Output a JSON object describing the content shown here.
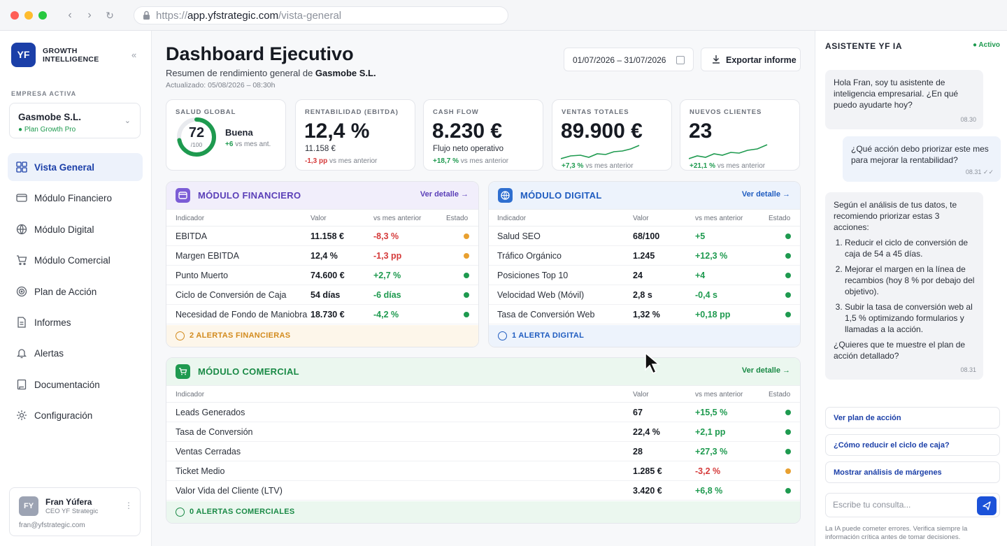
{
  "browser": {
    "url_prefix": "https://",
    "url_domain": "app.yfstrategic.com",
    "url_path": "/vista-general"
  },
  "sidebar": {
    "logo": "YF",
    "brand_line1": "GROWTH",
    "brand_line2": "INTELLIGENCE",
    "company_label": "EMPRESA ACTIVA",
    "company_name": "Gasmobe S.L.",
    "company_plan": "● Plan Growth Pro",
    "items": [
      {
        "label": "Vista General",
        "icon": "grid-icon",
        "active": true
      },
      {
        "label": "Módulo Financiero",
        "icon": "wallet-icon"
      },
      {
        "label": "Módulo Digital",
        "icon": "globe-icon"
      },
      {
        "label": "Módulo Comercial",
        "icon": "cart-icon"
      },
      {
        "label": "Plan de Acción",
        "icon": "target-icon"
      },
      {
        "label": "Informes",
        "icon": "document-icon"
      },
      {
        "label": "Alertas",
        "icon": "bell-icon"
      },
      {
        "label": "Documentación",
        "icon": "book-icon"
      },
      {
        "label": "Configuración",
        "icon": "gear-icon"
      }
    ],
    "user": {
      "initials": "FY",
      "name": "Fran Yúfera",
      "role": "CEO YF Strategic",
      "email": "fran@yfstrategic.com"
    }
  },
  "header": {
    "title": "Dashboard Ejecutivo",
    "subtitle_prefix": "Resumen de rendimiento general de ",
    "subtitle_company": "Gasmobe S.L.",
    "updated": "Actualizado: 05/08/2026 – 08:30h",
    "date_range": "01/07/2026 – 31/07/2026",
    "export_label": "Exportar informe"
  },
  "kpis": {
    "health": {
      "title": "SALUD GLOBAL",
      "value": "72",
      "denom": "/100",
      "score": 0.72,
      "status": "Buena",
      "delta": "+6",
      "delta_text": "vs mes ant."
    },
    "ebitda": {
      "title": "RENTABILIDAD (EBITDA)",
      "value": "12,4 %",
      "sub": "11.158 €",
      "delta": "-1,3 pp",
      "delta_text": "vs mes anterior"
    },
    "cash": {
      "title": "CASH FLOW",
      "value": "8.230 €",
      "sub": "Flujo neto operativo",
      "delta": "+18,7 %",
      "delta_text": "vs mes anterior"
    },
    "sales": {
      "title": "VENTAS TOTALES",
      "value": "89.900 €",
      "delta": "+7,3 %",
      "delta_text": "vs mes anterior"
    },
    "clients": {
      "title": "NUEVOS CLIENTES",
      "value": "23",
      "delta": "+21,1 %",
      "delta_text": "vs mes anterior"
    }
  },
  "columns": {
    "indicator": "Indicador",
    "value": "Valor",
    "vs": "vs mes anterior",
    "status": "Estado"
  },
  "fin": {
    "title": "MÓDULO FINANCIERO",
    "detail": "Ver detalle →",
    "alert": "2 ALERTAS FINANCIERAS",
    "rows": [
      {
        "ind": "EBITDA",
        "val": "11.158 €",
        "vs": "-8,3 %",
        "dir": "neg",
        "status": "warn"
      },
      {
        "ind": "Margen EBITDA",
        "val": "12,4 %",
        "vs": "-1,3 pp",
        "dir": "neg",
        "status": "warn"
      },
      {
        "ind": "Punto Muerto",
        "val": "74.600 €",
        "vs": "+2,7 %",
        "dir": "pos",
        "status": "ok"
      },
      {
        "ind": "Ciclo de Conversión de Caja",
        "val": "54 días",
        "vs": "-6 días",
        "dir": "pos",
        "status": "ok"
      },
      {
        "ind": "Necesidad de Fondo de Maniobra",
        "val": "18.730 €",
        "vs": "-4,2 %",
        "dir": "pos",
        "status": "ok"
      }
    ]
  },
  "dig": {
    "title": "MÓDULO DIGITAL",
    "detail": "Ver detalle →",
    "alert": "1 ALERTA DIGITAL",
    "rows": [
      {
        "ind": "Salud SEO",
        "val": "68/100",
        "vs": "+5",
        "dir": "pos",
        "status": "ok"
      },
      {
        "ind": "Tráfico Orgánico",
        "val": "1.245",
        "vs": "+12,3 %",
        "dir": "pos",
        "status": "ok"
      },
      {
        "ind": "Posiciones Top 10",
        "val": "24",
        "vs": "+4",
        "dir": "pos",
        "status": "ok"
      },
      {
        "ind": "Velocidad Web (Móvil)",
        "val": "2,8 s",
        "vs": "-0,4 s",
        "dir": "pos",
        "status": "ok"
      },
      {
        "ind": "Tasa de Conversión Web",
        "val": "1,32 %",
        "vs": "+0,18 pp",
        "dir": "pos",
        "status": "ok"
      }
    ]
  },
  "com": {
    "title": "MÓDULO COMERCIAL",
    "detail": "Ver detalle →",
    "alert": "0 ALERTAS COMERCIALES",
    "rows": [
      {
        "ind": "Leads Generados",
        "val": "67",
        "vs": "+15,5 %",
        "dir": "pos",
        "status": "ok"
      },
      {
        "ind": "Tasa de Conversión",
        "val": "22,4 %",
        "vs": "+2,1 pp",
        "dir": "pos",
        "status": "ok"
      },
      {
        "ind": "Ventas Cerradas",
        "val": "28",
        "vs": "+27,3 %",
        "dir": "pos",
        "status": "ok"
      },
      {
        "ind": "Ticket Medio",
        "val": "1.285 €",
        "vs": "-3,2 %",
        "dir": "neg",
        "status": "warn"
      },
      {
        "ind": "Valor Vida del Cliente (LTV)",
        "val": "3.420 €",
        "vs": "+6,8 %",
        "dir": "pos",
        "status": "ok"
      }
    ]
  },
  "chat": {
    "title": "ASISTENTE YF IA",
    "status": "● Activo",
    "m1": "Hola Fran, soy tu asistente de inteligencia empresarial. ¿En qué puedo ayudarte hoy?",
    "t1": "08.30",
    "m2": "¿Qué acción debo priorizar este mes para mejorar la rentabilidad?",
    "t2": "08.31 ✓✓",
    "m3_intro": "Según el análisis de tus datos, te recomiendo priorizar estas 3 acciones:",
    "m3_items": [
      "Reducir el ciclo de conversión de caja de 54 a 45 días.",
      "Mejorar el margen en la línea de recambios (hoy 8 % por debajo del objetivo).",
      "Subir la tasa de conversión web al 1,5 % optimizando formularios y llamadas a la acción."
    ],
    "m3_outro": "¿Quieres que te muestre el plan de acción detallado?",
    "t3": "08.31",
    "suggestions": [
      "Ver plan de acción",
      "¿Cómo reducir el ciclo de caja?",
      "Mostrar análisis de márgenes"
    ],
    "placeholder": "Escribe tu consulta...",
    "disclaimer": "La IA puede cometer errores. Verifica siempre la información crítica antes de tomar decisiones."
  },
  "colors": {
    "primary": "#1b3fa8",
    "financial": "#7b5cd6",
    "digital": "#2f6fd0",
    "commercial": "#1e9a4f",
    "ok": "#1e9a4f",
    "warn": "#e8a030",
    "neg": "#d53a3a"
  }
}
